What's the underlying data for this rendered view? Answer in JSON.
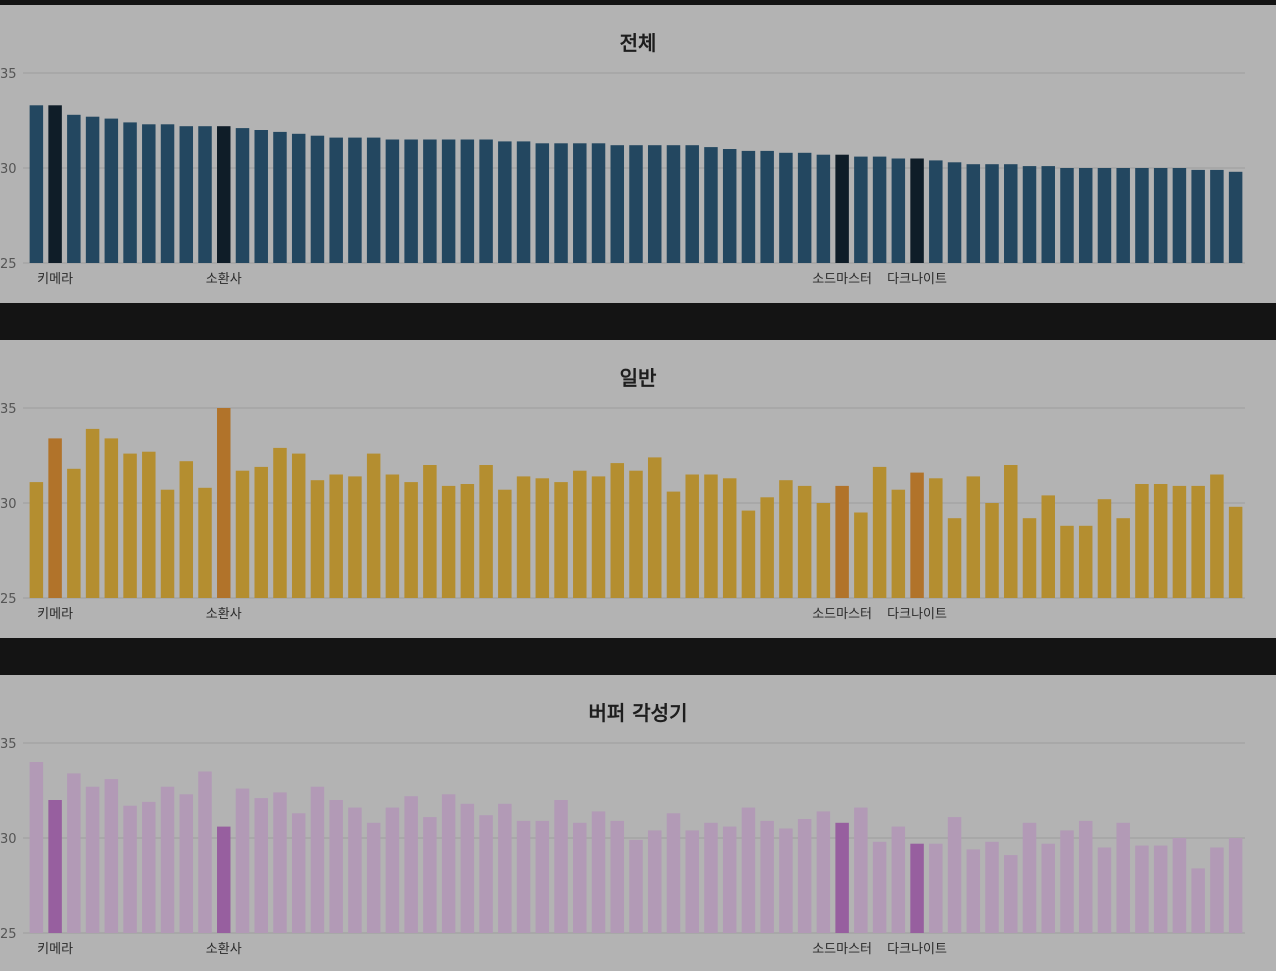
{
  "chart_data": [
    {
      "type": "bar",
      "title": "전체",
      "ylim": [
        25,
        35
      ],
      "yticks": [
        25,
        30,
        35
      ],
      "grid": true,
      "bar_color": "#234760",
      "highlight_color": "#0f1d28",
      "highlight_indices": [
        1,
        10,
        43,
        47
      ],
      "category_labels": [
        {
          "index": 1,
          "label": "키메라"
        },
        {
          "index": 10,
          "label": "소환사"
        },
        {
          "index": 43,
          "label": "소드마스터"
        },
        {
          "index": 47,
          "label": "다크나이트"
        }
      ],
      "values": [
        33.3,
        33.3,
        32.8,
        32.7,
        32.6,
        32.4,
        32.3,
        32.3,
        32.2,
        32.2,
        32.2,
        32.1,
        32.0,
        31.9,
        31.8,
        31.7,
        31.6,
        31.6,
        31.6,
        31.5,
        31.5,
        31.5,
        31.5,
        31.5,
        31.5,
        31.4,
        31.4,
        31.3,
        31.3,
        31.3,
        31.3,
        31.2,
        31.2,
        31.2,
        31.2,
        31.2,
        31.1,
        31.0,
        30.9,
        30.9,
        30.8,
        30.8,
        30.7,
        30.7,
        30.6,
        30.6,
        30.5,
        30.5,
        30.4,
        30.3,
        30.2,
        30.2,
        30.2,
        30.1,
        30.1,
        30.0,
        30.0,
        30.0,
        30.0,
        30.0,
        30.0,
        30.0,
        29.9,
        29.9,
        29.8
      ]
    },
    {
      "type": "bar",
      "title": "일반",
      "ylim": [
        25,
        35
      ],
      "yticks": [
        25,
        30,
        35
      ],
      "grid": true,
      "bar_color": "#b48e30",
      "highlight_color": "#b1732a",
      "highlight_indices": [
        1,
        10,
        43,
        47
      ],
      "category_labels": [
        {
          "index": 1,
          "label": "키메라"
        },
        {
          "index": 10,
          "label": "소환사"
        },
        {
          "index": 43,
          "label": "소드마스터"
        },
        {
          "index": 47,
          "label": "다크나이트"
        }
      ],
      "values": [
        31.1,
        33.4,
        31.8,
        33.9,
        33.4,
        32.6,
        32.7,
        30.7,
        32.2,
        30.8,
        35.0,
        31.7,
        31.9,
        32.9,
        32.6,
        31.2,
        31.5,
        31.4,
        32.6,
        31.5,
        31.1,
        32.0,
        30.9,
        31.0,
        32.0,
        30.7,
        31.4,
        31.3,
        31.1,
        31.7,
        31.4,
        32.1,
        31.7,
        32.4,
        30.6,
        31.5,
        31.5,
        31.3,
        29.6,
        30.3,
        31.2,
        30.9,
        30.0,
        30.9,
        29.5,
        31.9,
        30.7,
        31.6,
        31.3,
        29.2,
        31.4,
        30.0,
        32.0,
        29.2,
        30.4,
        28.8,
        28.8,
        30.2,
        29.2,
        31.0,
        31.0,
        30.9,
        30.9,
        31.5,
        29.8
      ]
    },
    {
      "type": "bar",
      "title": "버퍼 각성기",
      "ylim": [
        25,
        35
      ],
      "yticks": [
        25,
        30,
        35
      ],
      "grid": true,
      "bar_color": "#b29ab6",
      "highlight_color": "#975f9f",
      "highlight_indices": [
        1,
        10,
        43,
        47
      ],
      "category_labels": [
        {
          "index": 1,
          "label": "키메라"
        },
        {
          "index": 10,
          "label": "소환사"
        },
        {
          "index": 43,
          "label": "소드마스터"
        },
        {
          "index": 47,
          "label": "다크나이트"
        }
      ],
      "values": [
        34.0,
        32.0,
        33.4,
        32.7,
        33.1,
        31.7,
        31.9,
        32.7,
        32.3,
        33.5,
        30.6,
        32.6,
        32.1,
        32.4,
        31.3,
        32.7,
        32.0,
        31.6,
        30.8,
        31.6,
        32.2,
        31.1,
        32.3,
        31.8,
        31.2,
        31.8,
        30.9,
        30.9,
        32.0,
        30.8,
        31.4,
        30.9,
        29.9,
        30.4,
        31.3,
        30.4,
        30.8,
        30.6,
        31.6,
        30.9,
        30.5,
        31.0,
        31.4,
        30.8,
        31.6,
        29.8,
        30.6,
        29.7,
        29.7,
        31.1,
        29.4,
        29.8,
        29.1,
        30.8,
        29.7,
        30.4,
        30.9,
        29.5,
        30.8,
        29.6,
        29.6,
        30.0,
        28.4,
        29.5,
        30.0
      ]
    }
  ]
}
